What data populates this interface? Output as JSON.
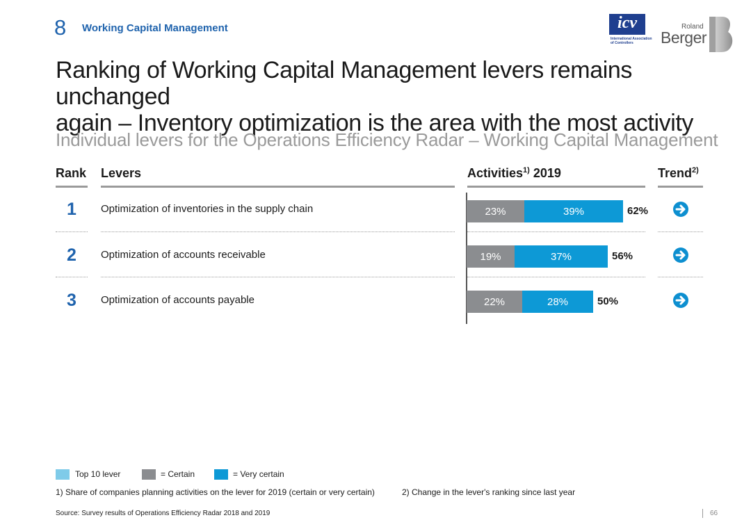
{
  "header": {
    "section_number": "8",
    "section_title": "Working Capital Management",
    "icv_logo_text": "icv",
    "icv_caption": "International Association of Controllers",
    "rb_logo_top": "Roland",
    "rb_logo_bottom": "Berger"
  },
  "title_line1": "Ranking of Working Capital Management levers remains unchanged",
  "title_line2": "again – Inventory optimization is the area with the most activity",
  "subtitle": "Individual levers for the Operations Efficiency Radar – Working Capital Management",
  "table_headers": {
    "rank": "Rank",
    "levers": "Levers",
    "activities": "Activities",
    "activities_sup": "1)",
    "activities_year": " 2019",
    "trend": "Trend",
    "trend_sup": "2)"
  },
  "rows": [
    {
      "rank": "1",
      "lever": "Optimization of inventories in the supply chain",
      "trend_icon": "right-arrow-circle-icon"
    },
    {
      "rank": "2",
      "lever": "Optimization of accounts receivable",
      "trend_icon": "right-arrow-circle-icon"
    },
    {
      "rank": "3",
      "lever": "Optimization of accounts payable",
      "trend_icon": "right-arrow-circle-icon"
    }
  ],
  "chart_data": {
    "type": "bar",
    "orientation": "horizontal",
    "stacked": true,
    "categories": [
      "Optimization of inventories in the supply chain",
      "Optimization of accounts receivable",
      "Optimization of accounts payable"
    ],
    "series": [
      {
        "name": "Certain",
        "color": "#8b8d90",
        "values": [
          23,
          19,
          22
        ],
        "labels": [
          "23%",
          "19%",
          "22%"
        ]
      },
      {
        "name": "Very certain",
        "color": "#0d99d6",
        "values": [
          39,
          37,
          28
        ],
        "labels": [
          "39%",
          "37%",
          "28%"
        ]
      }
    ],
    "totals": [
      62,
      56,
      50
    ],
    "total_labels": [
      "62%",
      "56%",
      "50%"
    ],
    "xlim": [
      0,
      70
    ],
    "title": "Activities 2019"
  },
  "legend": {
    "top10": {
      "label": "Top 10 lever",
      "color": "#7fcbe9"
    },
    "certain": {
      "label": "= Certain",
      "color": "#8b8d90"
    },
    "very_certain": {
      "label": "= Very certain",
      "color": "#0d99d6"
    }
  },
  "footnotes": {
    "note1": "1) Share of companies planning activities on the lever for 2019 (certain or very certain)",
    "note2": "2) Change in the lever's ranking since last year"
  },
  "source": "Source: Survey results of Operations Efficiency Radar 2018 and 2019",
  "page_number": "66",
  "colors": {
    "accent_blue": "#1f63ad",
    "trend_blue": "#0d8fd0"
  }
}
